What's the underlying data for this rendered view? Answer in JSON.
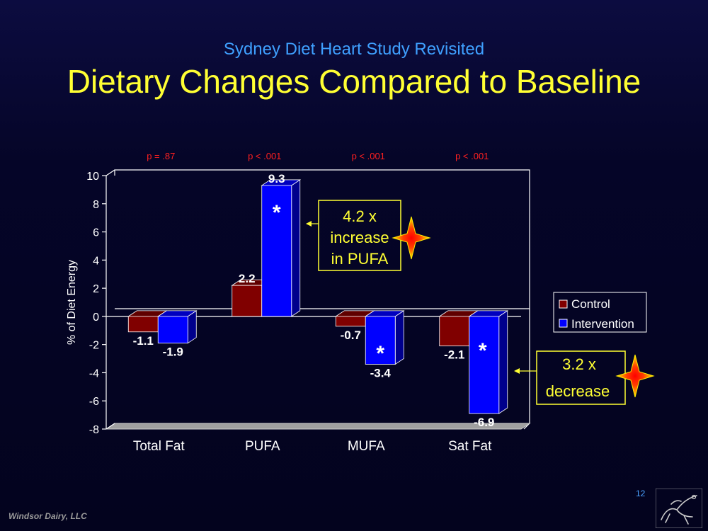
{
  "slide": {
    "subtitle": "Sydney Diet Heart Study Revisited",
    "title": "Dietary Changes Compared to Baseline",
    "footer": "Windsor Dairy, LLC",
    "slide_number": "12"
  },
  "chart_data": {
    "type": "bar",
    "ylabel": "% of Diet Energy",
    "xlabel": "",
    "ylim": [
      -8,
      10
    ],
    "yticks": [
      10,
      8,
      6,
      4,
      2,
      0,
      -2,
      -4,
      -6,
      -8
    ],
    "categories": [
      "Total Fat",
      "PUFA",
      "MUFA",
      "Sat Fat"
    ],
    "series": [
      {
        "name": "Control",
        "values": [
          -1.1,
          2.2,
          -0.7,
          -2.1
        ],
        "labels": [
          "-1.1",
          "2.2",
          "-0.7",
          "-2.1"
        ],
        "color": "#800000"
      },
      {
        "name": "Intervention",
        "values": [
          -1.9,
          9.3,
          -3.4,
          -6.9
        ],
        "labels": [
          "-1.9",
          "9.3",
          "-3.4",
          "-6.9"
        ],
        "color": "#0000ff"
      }
    ],
    "p_values": [
      "p = .87",
      "p < .001",
      "p < .001",
      "p < .001"
    ],
    "significance_marker": "*",
    "significant": [
      false,
      true,
      true,
      true
    ],
    "legend_position": "right",
    "grid": false,
    "annotations": [
      {
        "lines": [
          "4.2 x",
          "increase",
          "in PUFA"
        ],
        "target": "PUFA"
      },
      {
        "lines": [
          "3.2 x",
          "decrease"
        ],
        "target": "Sat Fat"
      }
    ],
    "colors": {
      "p_value": "#ff2020",
      "annotation": "#ffff33",
      "star_outer": "#ffee00",
      "star_inner": "#ff0000"
    }
  }
}
